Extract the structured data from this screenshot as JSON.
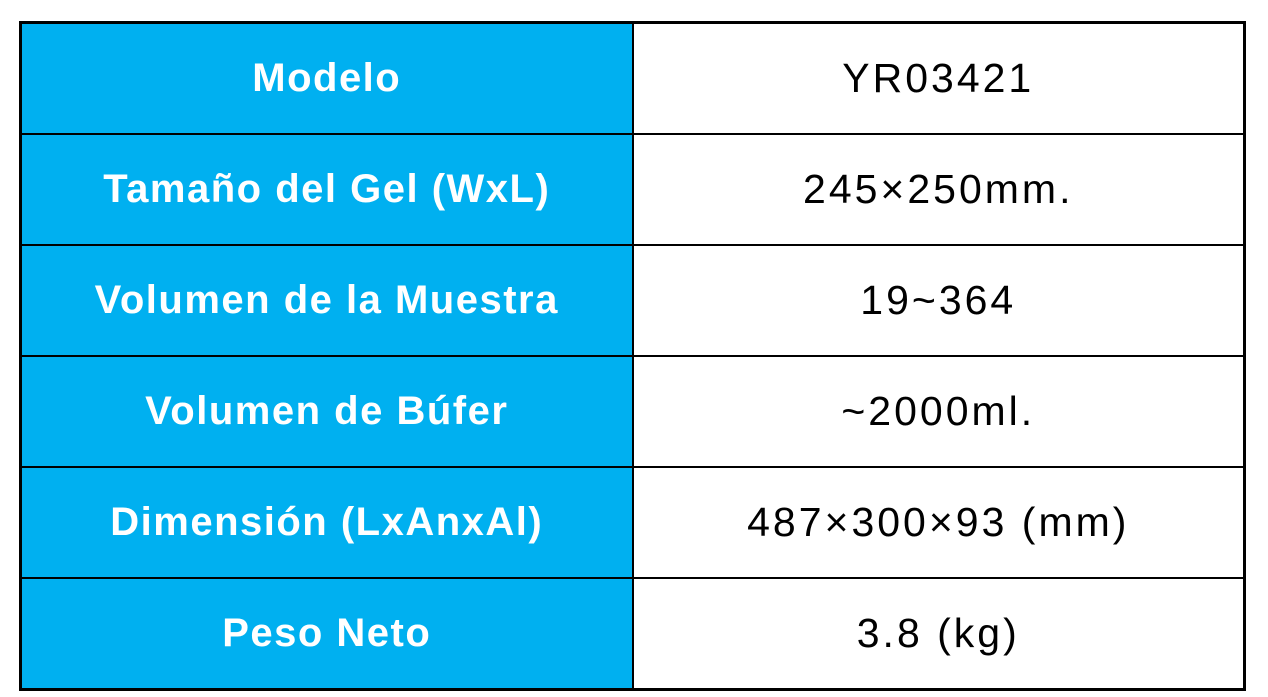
{
  "table": {
    "columns": [
      "attribute",
      "value"
    ],
    "rows": [
      {
        "label": "Modelo",
        "value": "YR03421"
      },
      {
        "label": "Tamaño del Gel (WxL)",
        "value": "245×250mm."
      },
      {
        "label": "Volumen de la Muestra",
        "value": "19~364"
      },
      {
        "label": "Volumen de Búfer",
        "value": "~2000ml."
      },
      {
        "label": "Dimensión (LxAnxAl)",
        "value": "487×300×93 (mm)"
      },
      {
        "label": "Peso Neto",
        "value": "3.8 (kg)"
      }
    ],
    "colors": {
      "label_background": "#00b0f0",
      "label_text": "#ffffff",
      "value_background": "#ffffff",
      "value_text": "#000000",
      "border": "#000000",
      "page_background": "#ffffff"
    }
  }
}
